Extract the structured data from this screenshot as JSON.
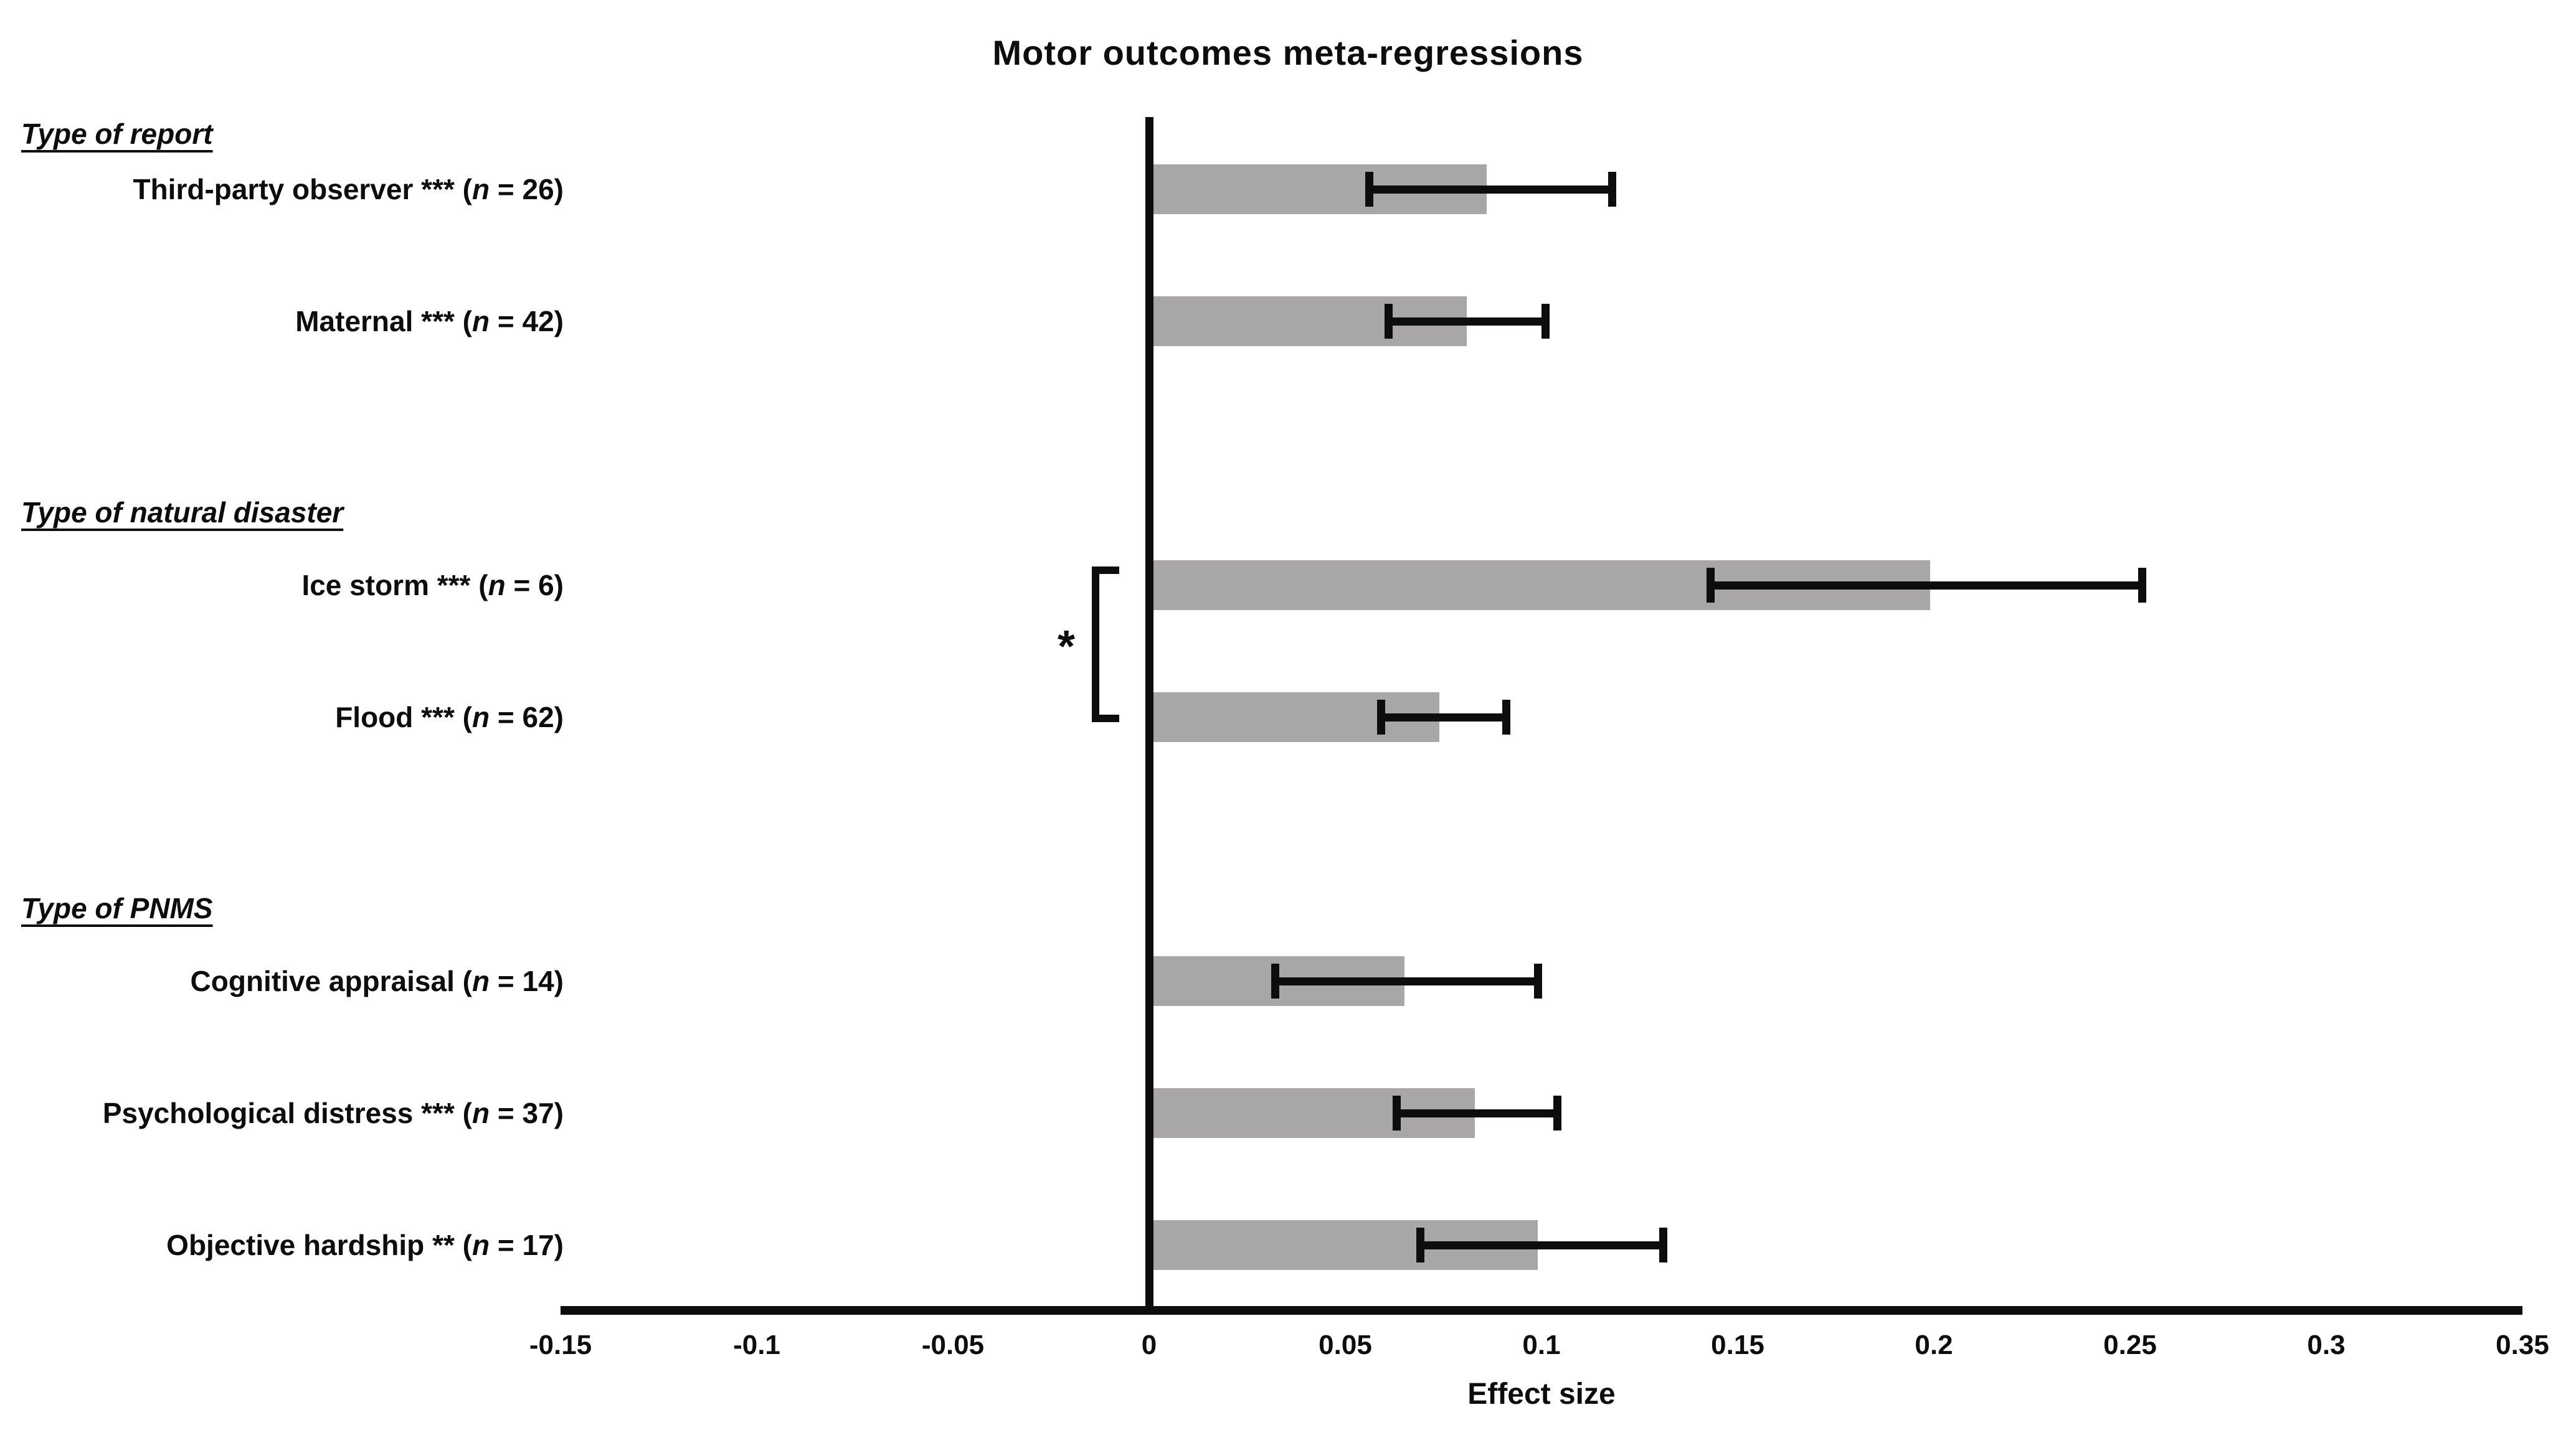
{
  "chart_data": {
    "type": "bar",
    "orientation": "horizontal",
    "title": "Motor outcomes meta-regressions",
    "xlabel": "Effect size",
    "xlim": [
      -0.15,
      0.35
    ],
    "grid": false,
    "legend": false,
    "xticks": [
      {
        "value": -0.15,
        "label": "-0.15"
      },
      {
        "value": -0.1,
        "label": "-0.1"
      },
      {
        "value": -0.05,
        "label": "-0.05"
      },
      {
        "value": 0,
        "label": "0"
      },
      {
        "value": 0.05,
        "label": "0.05"
      },
      {
        "value": 0.1,
        "label": "0.1"
      },
      {
        "value": 0.15,
        "label": "0.15"
      },
      {
        "value": 0.2,
        "label": "0.2"
      },
      {
        "value": 0.25,
        "label": "0.25"
      },
      {
        "value": 0.3,
        "label": "0.3"
      },
      {
        "value": 0.35,
        "label": "0.35"
      }
    ],
    "groups": [
      {
        "header": "Type of report",
        "rows": [
          {
            "label": "Third-party observer *** (n = 26)",
            "value": 0.086,
            "ci": [
              0.056,
              0.118
            ]
          },
          {
            "label": "Maternal *** (n = 42)",
            "value": 0.081,
            "ci": [
              0.061,
              0.101
            ]
          }
        ]
      },
      {
        "header": "Type of natural disaster",
        "rows": [
          {
            "label": "Ice storm *** (n = 6)",
            "value": 0.199,
            "ci": [
              0.143,
              0.253
            ]
          },
          {
            "label": "Flood *** (n = 62)",
            "value": 0.074,
            "ci": [
              0.059,
              0.091
            ]
          }
        ]
      },
      {
        "header": "Type of PNMS",
        "rows": [
          {
            "label": "Cognitive appraisal (n = 14)",
            "value": 0.065,
            "ci": [
              0.032,
              0.099
            ]
          },
          {
            "label": "Psychological distress *** (n = 37)",
            "value": 0.083,
            "ci": [
              0.063,
              0.104
            ]
          },
          {
            "label": "Objective hardship ** (n = 17)",
            "value": 0.099,
            "ci": [
              0.069,
              0.131
            ]
          }
        ]
      }
    ],
    "comparison_bracket": {
      "between": [
        "Ice storm *** (n = 6)",
        "Flood *** (n = 62)"
      ],
      "label": "*"
    },
    "bar_color": "#a9a6a6",
    "line_color": "#0d0d0d",
    "background_color": "#ffffff"
  }
}
